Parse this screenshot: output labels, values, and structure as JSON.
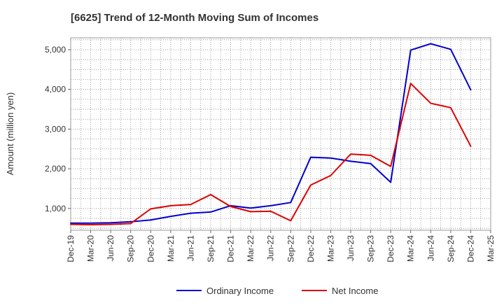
{
  "chart_data": {
    "type": "line",
    "title": "[6625]  Trend of 12-Month Moving Sum of Incomes",
    "xlabel": "",
    "ylabel": "Amount (million yen)",
    "categories": [
      "Dec-19",
      "Mar-20",
      "Jun-20",
      "Sep-20",
      "Dec-20",
      "Mar-21",
      "Jun-21",
      "Sep-21",
      "Dec-21",
      "Mar-22",
      "Jun-22",
      "Sep-22",
      "Dec-22",
      "Mar-23",
      "Jun-23",
      "Sep-23",
      "Dec-23",
      "Mar-24",
      "Jun-24",
      "Sep-24",
      "Dec-24",
      "Mar-25"
    ],
    "ylim": [
      450,
      5300
    ],
    "yticks": [
      1000,
      2000,
      3000,
      4000,
      5000
    ],
    "ytick_labels": [
      "1,000",
      "2,000",
      "3,000",
      "4,000",
      "5,000"
    ],
    "grid": true,
    "legend_position": "bottom",
    "series": [
      {
        "name": "Ordinary Income",
        "color": "#0000cc",
        "values": [
          630,
          630,
          640,
          665,
          710,
          800,
          880,
          910,
          1070,
          1010,
          1070,
          1150,
          2290,
          2270,
          2190,
          2130,
          1660,
          4990,
          5150,
          5010,
          3990,
          null
        ]
      },
      {
        "name": "Net Income",
        "color": "#dd0000",
        "values": [
          600,
          590,
          600,
          620,
          990,
          1070,
          1100,
          1350,
          1050,
          920,
          930,
          690,
          1590,
          1830,
          2370,
          2340,
          2060,
          4150,
          3650,
          3540,
          2570,
          null
        ]
      }
    ]
  }
}
